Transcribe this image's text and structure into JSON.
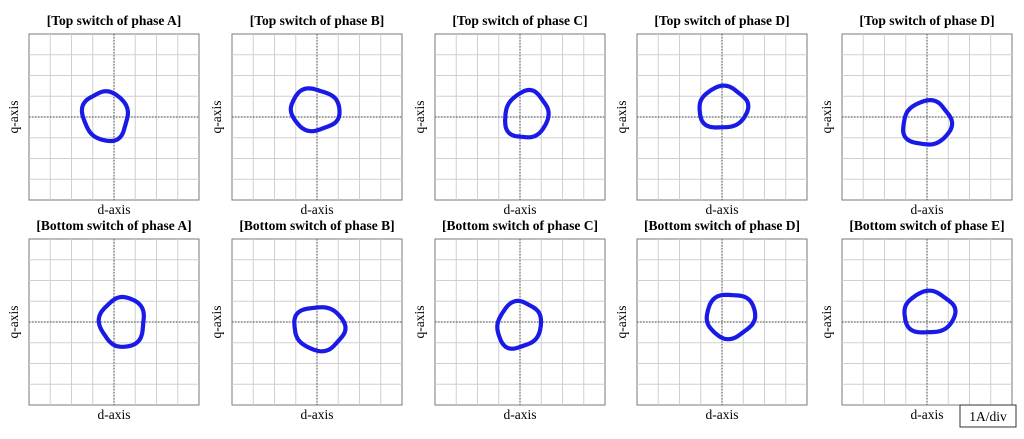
{
  "chart_data": {
    "type": "scatter",
    "trace_color": "#1a1ae6",
    "x_label": "d-axis",
    "y_label": "q-axis",
    "scale_label": "1A/div",
    "grid": true,
    "panels": [
      {
        "title": "[Top switch of phase A]",
        "center": [
          -0.4,
          0.05
        ],
        "radius": [
          1.05,
          1.2
        ],
        "tilt": 15
      },
      {
        "title": "[Top switch of phase B]",
        "center": [
          -0.1,
          0.35
        ],
        "radius": [
          1.15,
          1.0
        ],
        "tilt": -10
      },
      {
        "title": "[Top switch of phase C]",
        "center": [
          0.3,
          0.1
        ],
        "radius": [
          1.0,
          1.15
        ],
        "tilt": -20
      },
      {
        "title": "[Top switch of phase D]",
        "center": [
          0.05,
          0.45
        ],
        "radius": [
          1.15,
          1.0
        ],
        "tilt": 10
      },
      {
        "title": "[Top switch of phase D]",
        "center": [
          0.0,
          -0.3
        ],
        "radius": [
          1.15,
          1.05
        ],
        "tilt": 20
      },
      {
        "title": "[Bottom switch of phase A]",
        "center": [
          0.4,
          0.0
        ],
        "radius": [
          1.05,
          1.2
        ],
        "tilt": 0
      },
      {
        "title": "[Bottom switch of phase B]",
        "center": [
          0.1,
          -0.3
        ],
        "radius": [
          1.2,
          1.05
        ],
        "tilt": -10
      },
      {
        "title": "[Bottom switch of phase C]",
        "center": [
          -0.05,
          -0.15
        ],
        "radius": [
          1.0,
          1.15
        ],
        "tilt": -25
      },
      {
        "title": "[Bottom switch of phase D]",
        "center": [
          0.4,
          0.3
        ],
        "radius": [
          1.15,
          1.05
        ],
        "tilt": 20
      },
      {
        "title": "[Bottom switch of phase E]",
        "center": [
          0.1,
          0.45
        ],
        "radius": [
          1.2,
          1.0
        ],
        "tilt": 5
      }
    ]
  }
}
